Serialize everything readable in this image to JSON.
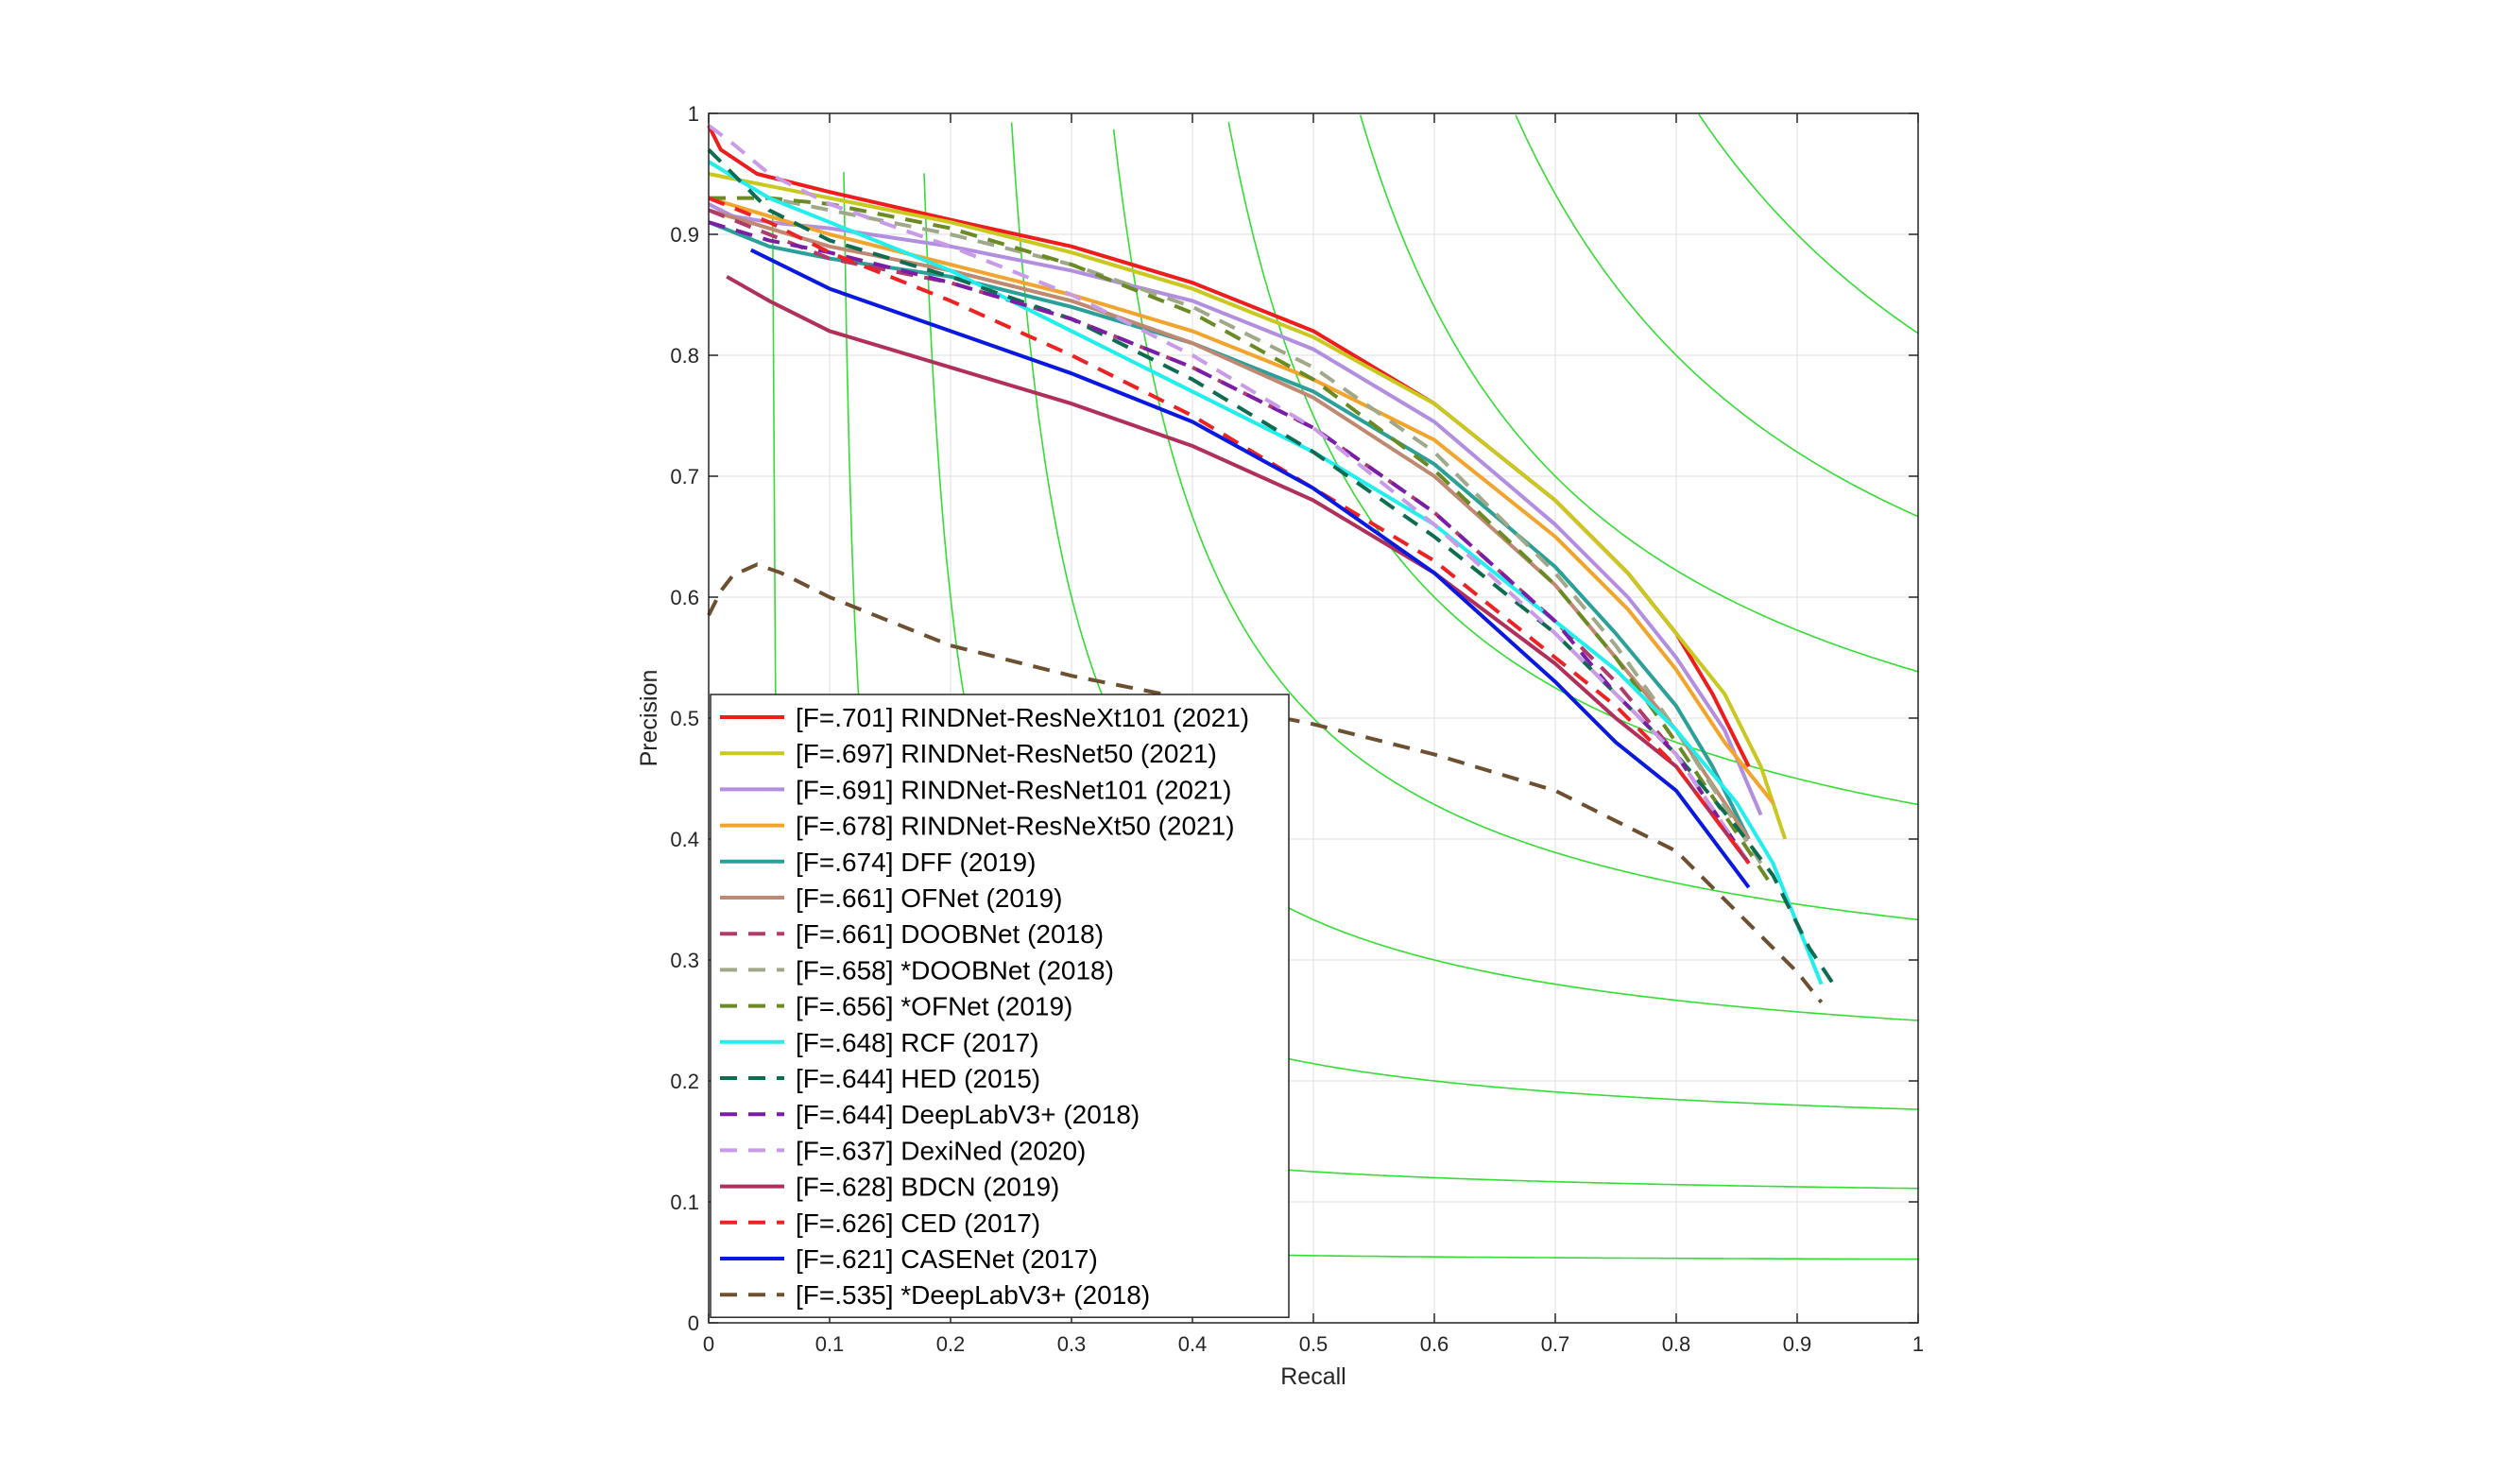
{
  "chart_data": {
    "type": "line",
    "xlabel": "Recall",
    "ylabel": "Precision",
    "xlim": [
      0,
      1
    ],
    "ylim": [
      0,
      1
    ],
    "grid": true,
    "legend_position": "bottom-left",
    "xticks": [
      "0",
      "0.1",
      "0.2",
      "0.3",
      "0.4",
      "0.5",
      "0.6",
      "0.7",
      "0.8",
      "0.9",
      "1"
    ],
    "yticks": [
      "0",
      "0.1",
      "0.2",
      "0.3",
      "0.4",
      "0.5",
      "0.6",
      "0.7",
      "0.8",
      "0.9",
      "1"
    ],
    "iso_f_levels": [
      0.1,
      0.2,
      0.3,
      0.4,
      0.5,
      0.6,
      0.7,
      0.8,
      0.9
    ],
    "iso_f_color": "#33dd33",
    "series": [
      {
        "name": "[F=.701] RINDNet-ResNeXt101 (2021)",
        "color": "#ee1c1c",
        "dash": false,
        "x": [
          0.0,
          0.01,
          0.04,
          0.1,
          0.2,
          0.3,
          0.4,
          0.5,
          0.6,
          0.7,
          0.76,
          0.8,
          0.83,
          0.86
        ],
        "y": [
          0.99,
          0.97,
          0.95,
          0.935,
          0.912,
          0.89,
          0.86,
          0.82,
          0.76,
          0.68,
          0.62,
          0.57,
          0.52,
          0.46
        ]
      },
      {
        "name": "[F=.697] RINDNet-ResNet50 (2021)",
        "color": "#c8c81e",
        "dash": false,
        "x": [
          0.0,
          0.05,
          0.1,
          0.2,
          0.3,
          0.4,
          0.5,
          0.6,
          0.7,
          0.76,
          0.8,
          0.84,
          0.87,
          0.89
        ],
        "y": [
          0.95,
          0.94,
          0.93,
          0.91,
          0.885,
          0.855,
          0.815,
          0.76,
          0.68,
          0.62,
          0.57,
          0.52,
          0.46,
          0.4
        ]
      },
      {
        "name": "[F=.691] RINDNet-ResNet101 (2021)",
        "color": "#b28ee0",
        "dash": false,
        "x": [
          0.0,
          0.02,
          0.05,
          0.1,
          0.2,
          0.3,
          0.4,
          0.5,
          0.6,
          0.7,
          0.76,
          0.8,
          0.84,
          0.87
        ],
        "y": [
          0.925,
          0.915,
          0.91,
          0.905,
          0.89,
          0.87,
          0.845,
          0.805,
          0.745,
          0.66,
          0.6,
          0.55,
          0.49,
          0.42
        ]
      },
      {
        "name": "[F=.678] RINDNet-ResNeXt50 (2021)",
        "color": "#f2a42c",
        "dash": false,
        "x": [
          0.0,
          0.05,
          0.1,
          0.2,
          0.3,
          0.4,
          0.5,
          0.6,
          0.7,
          0.76,
          0.8,
          0.84,
          0.88
        ],
        "y": [
          0.93,
          0.915,
          0.9,
          0.875,
          0.85,
          0.82,
          0.78,
          0.73,
          0.65,
          0.59,
          0.54,
          0.48,
          0.43
        ]
      },
      {
        "name": "[F=.674] DFF (2019)",
        "color": "#2aa098",
        "dash": false,
        "x": [
          0.0,
          0.05,
          0.1,
          0.2,
          0.3,
          0.4,
          0.5,
          0.6,
          0.7,
          0.75,
          0.8,
          0.83,
          0.86
        ],
        "y": [
          0.91,
          0.89,
          0.88,
          0.865,
          0.84,
          0.81,
          0.77,
          0.71,
          0.625,
          0.57,
          0.51,
          0.46,
          0.4
        ]
      },
      {
        "name": "[F=.661] OFNet (2019)",
        "color": "#c08870",
        "dash": false,
        "x": [
          0.0,
          0.05,
          0.1,
          0.2,
          0.3,
          0.4,
          0.5,
          0.6,
          0.7,
          0.75,
          0.8,
          0.86
        ],
        "y": [
          0.92,
          0.905,
          0.89,
          0.87,
          0.845,
          0.81,
          0.765,
          0.7,
          0.61,
          0.55,
          0.49,
          0.4
        ]
      },
      {
        "name": "[F=.661] DOOBNet (2018)",
        "color": "#b03a6a",
        "dash": true,
        "x": [
          0.0,
          0.05,
          0.1,
          0.2,
          0.3,
          0.4,
          0.5,
          0.6,
          0.7,
          0.75,
          0.8,
          0.86
        ],
        "y": [
          0.92,
          0.9,
          0.88,
          0.86,
          0.83,
          0.79,
          0.74,
          0.67,
          0.58,
          0.53,
          0.47,
          0.38
        ]
      },
      {
        "name": "[F=.658] *DOOBNet (2018)",
        "color": "#a0a88a",
        "dash": true,
        "x": [
          0.0,
          0.05,
          0.1,
          0.2,
          0.3,
          0.4,
          0.5,
          0.6,
          0.7,
          0.75,
          0.8,
          0.87
        ],
        "y": [
          0.96,
          0.93,
          0.92,
          0.9,
          0.875,
          0.84,
          0.79,
          0.72,
          0.62,
          0.56,
          0.49,
          0.38
        ]
      },
      {
        "name": "[F=.656] *OFNet (2019)",
        "color": "#6a8a24",
        "dash": true,
        "x": [
          0.0,
          0.05,
          0.1,
          0.2,
          0.3,
          0.4,
          0.5,
          0.6,
          0.7,
          0.75,
          0.8,
          0.88
        ],
        "y": [
          0.93,
          0.93,
          0.925,
          0.905,
          0.875,
          0.835,
          0.78,
          0.705,
          0.61,
          0.55,
          0.48,
          0.36
        ]
      },
      {
        "name": "[F=.648] RCF (2017)",
        "color": "#22eeee",
        "dash": false,
        "x": [
          0.0,
          0.05,
          0.1,
          0.2,
          0.3,
          0.4,
          0.5,
          0.6,
          0.7,
          0.75,
          0.8,
          0.85,
          0.88,
          0.9,
          0.92
        ],
        "y": [
          0.96,
          0.93,
          0.91,
          0.87,
          0.82,
          0.77,
          0.72,
          0.66,
          0.58,
          0.54,
          0.49,
          0.43,
          0.38,
          0.33,
          0.28
        ]
      },
      {
        "name": "[F=.644] HED (2015)",
        "color": "#0e6c50",
        "dash": true,
        "x": [
          0.0,
          0.05,
          0.1,
          0.2,
          0.3,
          0.4,
          0.5,
          0.6,
          0.7,
          0.75,
          0.8,
          0.85,
          0.88,
          0.91,
          0.93
        ],
        "y": [
          0.97,
          0.92,
          0.895,
          0.865,
          0.83,
          0.78,
          0.72,
          0.65,
          0.57,
          0.52,
          0.47,
          0.41,
          0.37,
          0.31,
          0.28
        ]
      },
      {
        "name": "[F=.644] DeepLabV3+ (2018)",
        "color": "#7a1ea8",
        "dash": true,
        "x": [
          0.0,
          0.05,
          0.1,
          0.2,
          0.3,
          0.4,
          0.5,
          0.6,
          0.7,
          0.75,
          0.8,
          0.86
        ],
        "y": [
          0.91,
          0.895,
          0.885,
          0.86,
          0.83,
          0.79,
          0.74,
          0.67,
          0.58,
          0.52,
          0.47,
          0.38
        ]
      },
      {
        "name": "[F=.637] DexiNed (2020)",
        "color": "#c89ae8",
        "dash": true,
        "x": [
          0.0,
          0.02,
          0.05,
          0.1,
          0.2,
          0.3,
          0.4,
          0.5,
          0.6,
          0.7,
          0.75,
          0.8,
          0.86
        ],
        "y": [
          0.99,
          0.975,
          0.95,
          0.925,
          0.89,
          0.85,
          0.8,
          0.74,
          0.66,
          0.57,
          0.52,
          0.47,
          0.38
        ]
      },
      {
        "name": "[F=.628] BDCN (2019)",
        "color": "#b0305a",
        "dash": false,
        "x": [
          0.015,
          0.05,
          0.1,
          0.2,
          0.3,
          0.4,
          0.5,
          0.6,
          0.7,
          0.75,
          0.8,
          0.86
        ],
        "y": [
          0.865,
          0.845,
          0.82,
          0.79,
          0.76,
          0.725,
          0.68,
          0.62,
          0.545,
          0.5,
          0.46,
          0.38
        ]
      },
      {
        "name": "[F=.626] CED (2017)",
        "color": "#ee2222",
        "dash": true,
        "x": [
          0.0,
          0.05,
          0.1,
          0.2,
          0.3,
          0.4,
          0.5,
          0.6,
          0.7,
          0.75,
          0.8,
          0.86
        ],
        "y": [
          0.93,
          0.91,
          0.885,
          0.845,
          0.8,
          0.75,
          0.69,
          0.63,
          0.55,
          0.51,
          0.46,
          0.38
        ]
      },
      {
        "name": "[F=.621] CASENet (2017)",
        "color": "#0a18e0",
        "dash": false,
        "x": [
          0.035,
          0.1,
          0.2,
          0.3,
          0.4,
          0.5,
          0.6,
          0.7,
          0.75,
          0.8,
          0.86
        ],
        "y": [
          0.887,
          0.855,
          0.82,
          0.785,
          0.745,
          0.69,
          0.62,
          0.53,
          0.48,
          0.44,
          0.36
        ]
      },
      {
        "name": "[F=.535] *DeepLabV3+ (2018)",
        "color": "#6e5030",
        "dash": true,
        "x": [
          0.0,
          0.01,
          0.02,
          0.04,
          0.06,
          0.1,
          0.2,
          0.3,
          0.4,
          0.5,
          0.6,
          0.7,
          0.8,
          0.85,
          0.9,
          0.92
        ],
        "y": [
          0.585,
          0.605,
          0.618,
          0.627,
          0.62,
          0.6,
          0.56,
          0.535,
          0.515,
          0.495,
          0.47,
          0.44,
          0.39,
          0.34,
          0.29,
          0.265
        ]
      }
    ]
  }
}
